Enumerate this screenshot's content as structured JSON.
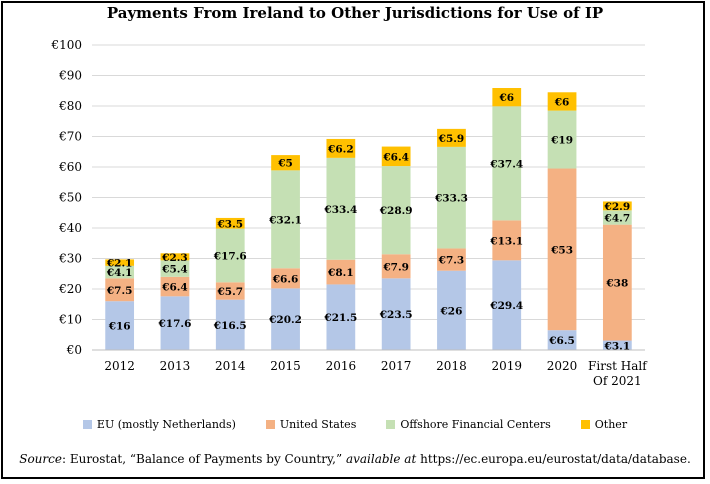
{
  "chart_data": {
    "type": "bar",
    "stacked": true,
    "title": "Payments From Ireland to Other Jurisdictions for Use of IP",
    "categories": [
      "2012",
      "2013",
      "2014",
      "2015",
      "2016",
      "2017",
      "2018",
      "2019",
      "2020",
      "First Half Of 2021"
    ],
    "series": [
      {
        "name": "EU (mostly Netherlands)",
        "color": "#b4c7e7",
        "values": [
          16,
          17.6,
          16.5,
          20.2,
          21.5,
          23.5,
          26,
          29.4,
          6.5,
          3.1
        ],
        "labels": [
          "€16",
          "€17.6",
          "€16.5",
          "€20.2",
          "€21.5",
          "€23.5",
          "€26",
          "€29.4",
          "€6.5",
          "€3.1"
        ]
      },
      {
        "name": "United States",
        "color": "#f4b183",
        "values": [
          7.5,
          6.4,
          5.7,
          6.6,
          8.1,
          7.9,
          7.3,
          13.1,
          53,
          38
        ],
        "labels": [
          "€7.5",
          "€6.4",
          "€5.7",
          "€6.6",
          "€8.1",
          "€7.9",
          "€7.3",
          "€13.1",
          "€53",
          "€38"
        ]
      },
      {
        "name": "Offshore Financial Centers",
        "color": "#c5e0b4",
        "values": [
          4.1,
          5.4,
          17.6,
          32.1,
          33.4,
          28.9,
          33.3,
          37.4,
          19,
          4.7
        ],
        "labels": [
          "€4.1",
          "€5.4",
          "€17.6",
          "€32.1",
          "€33.4",
          "€28.9",
          "€33.3",
          "€37.4",
          "€19",
          "€4.7"
        ]
      },
      {
        "name": "Other",
        "color": "#ffc000",
        "values": [
          2.1,
          2.3,
          3.5,
          5,
          6.2,
          6.4,
          5.9,
          6,
          6,
          2.9
        ],
        "labels": [
          "€2.1",
          "€2.3",
          "€3.5",
          "€5",
          "€6.2",
          "€6.4",
          "€5.9",
          "€6",
          "€6",
          "€2.9"
        ]
      }
    ],
    "ylim": [
      0,
      100
    ],
    "yticks": [
      0,
      10,
      20,
      30,
      40,
      50,
      60,
      70,
      80,
      90,
      100
    ],
    "ytick_labels": [
      "€0",
      "€10",
      "€20",
      "€30",
      "€40",
      "€50",
      "€60",
      "€70",
      "€80",
      "€90",
      "€100"
    ],
    "grid": true,
    "legend_position": "bottom"
  },
  "source": {
    "prefix": "Source",
    "text1": ": Eurostat, “Balance of Payments by Country,” ",
    "italic2": "available at",
    "text2": " https://ec.europa.eu/eurostat/data/database."
  }
}
